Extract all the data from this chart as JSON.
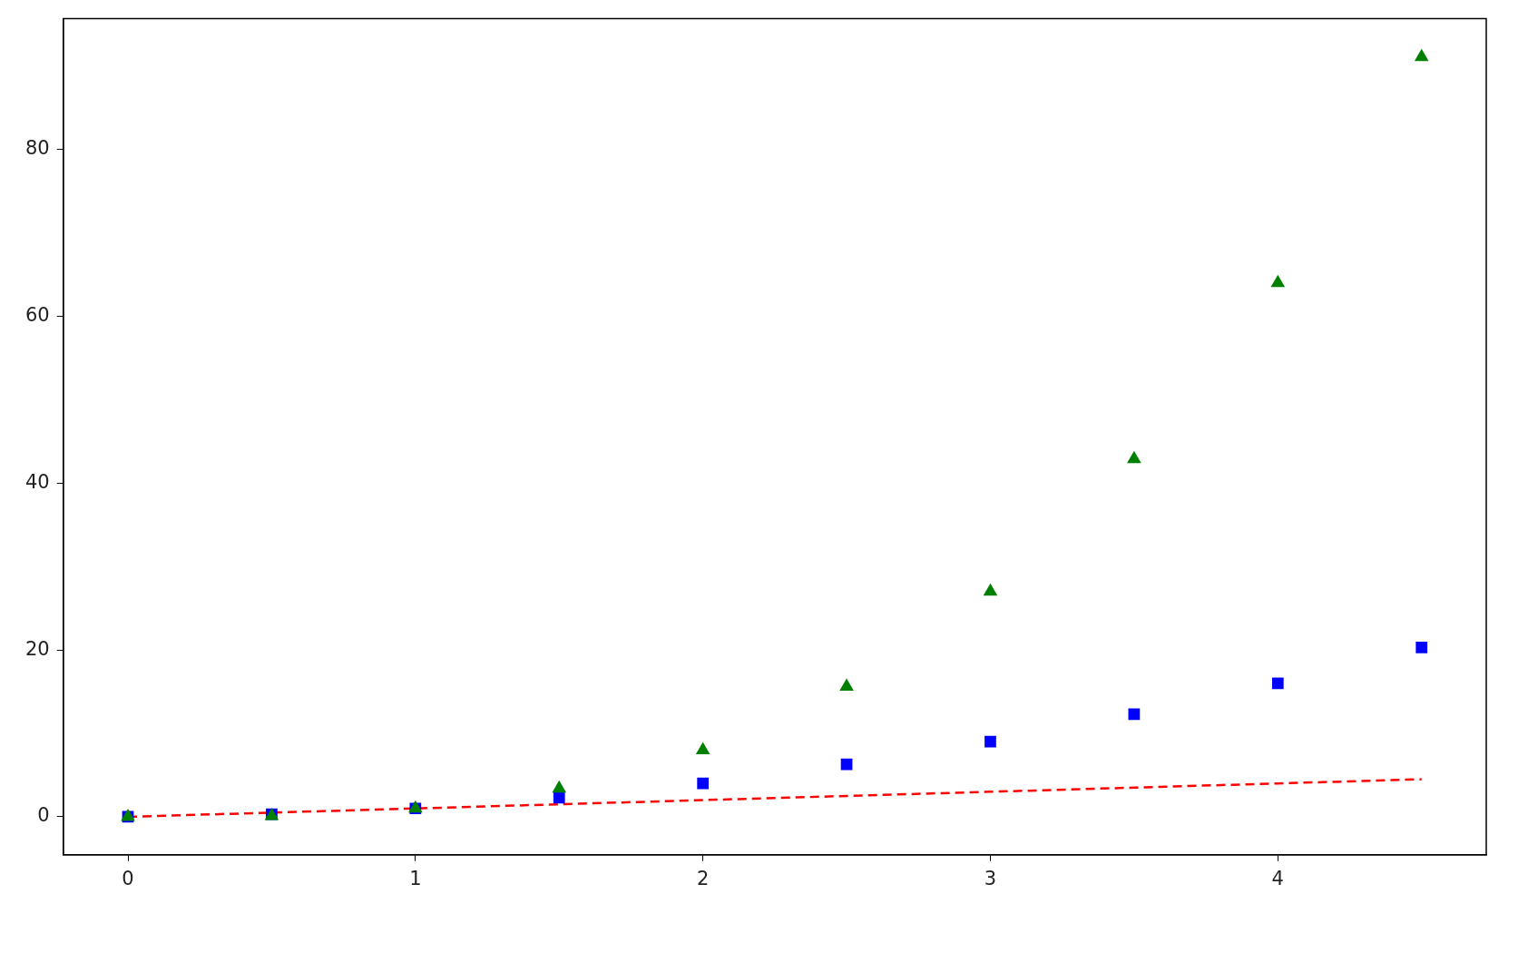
{
  "chart_data": {
    "type": "scatter",
    "x": [
      0,
      0.5,
      1,
      1.5,
      2,
      2.5,
      3,
      3.5,
      4,
      4.5
    ],
    "series": [
      {
        "type": "line",
        "color": "#ff0000",
        "line_style": "dashed",
        "marker": "none",
        "values": [
          0,
          0.5,
          1,
          1.5,
          2,
          2.5,
          3,
          3.5,
          4,
          4.5
        ]
      },
      {
        "color": "#0000ff",
        "marker": "square",
        "values": [
          0,
          0.3,
          1,
          2.3,
          4,
          6.3,
          9,
          12.3,
          16,
          20.3
        ]
      },
      {
        "color": "#008000",
        "marker": "triangle",
        "values": [
          0,
          0.1,
          1,
          3.4,
          8,
          15.6,
          27,
          42.9,
          64,
          91.1
        ]
      }
    ],
    "xlim": [
      -0.225,
      4.725
    ],
    "xticks": [
      0,
      1,
      2,
      3,
      4
    ],
    "ylim": [
      -4.556,
      95.681
    ],
    "yticks": [
      0,
      20,
      40,
      60,
      80
    ],
    "grid": false
  }
}
